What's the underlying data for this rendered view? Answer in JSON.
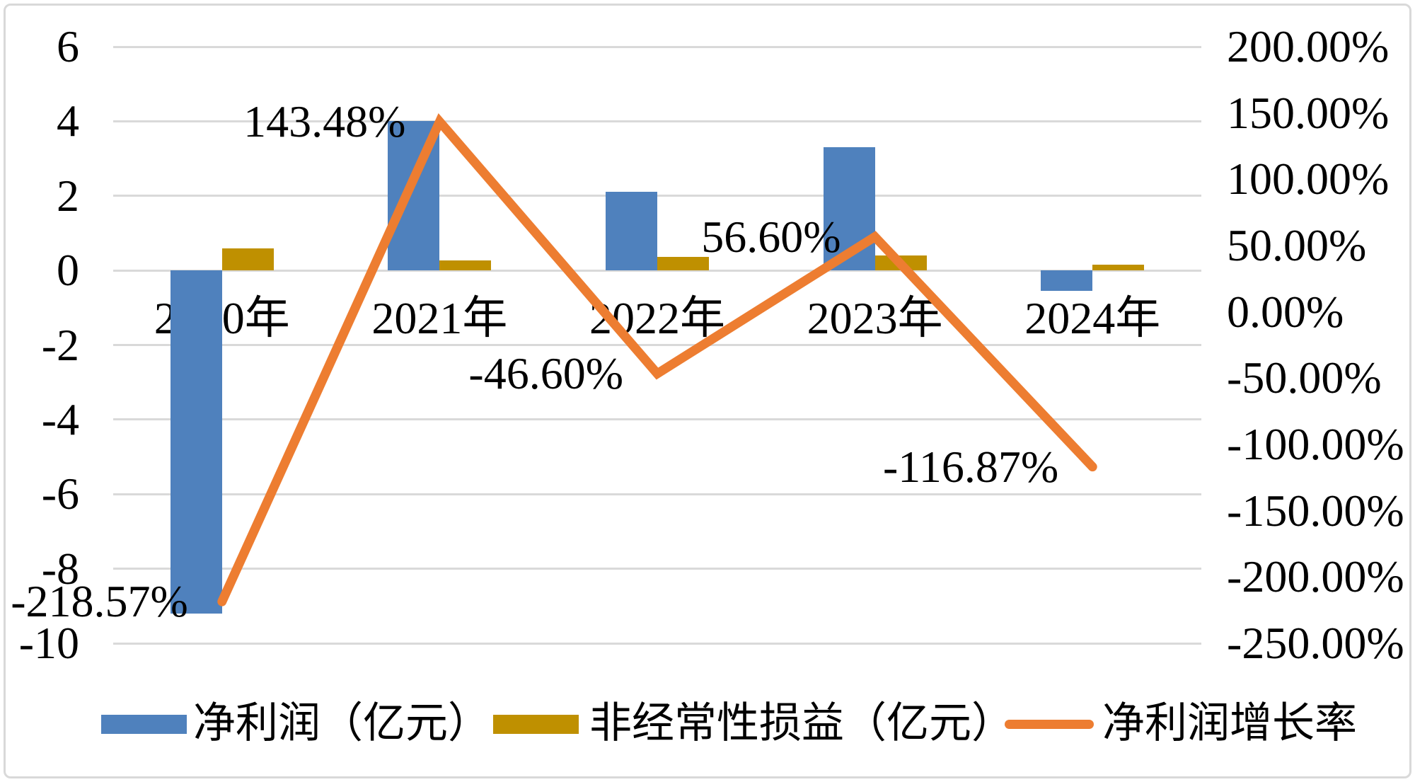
{
  "chart_data": {
    "type": "bar",
    "subtype": "combo-bar-line-dual-axis",
    "categories": [
      "2020年",
      "2021年",
      "2022年",
      "2023年",
      "2024年"
    ],
    "series": [
      {
        "name": "净利润（亿元）",
        "type": "bar",
        "axis": "left",
        "color": "#4F81BD",
        "values": [
          -9.2,
          4.0,
          2.1,
          3.3,
          -0.55
        ]
      },
      {
        "name": "非经常性损益（亿元）",
        "type": "bar",
        "axis": "left",
        "color": "#BF9000",
        "values": [
          0.6,
          0.27,
          0.36,
          0.4,
          0.15
        ]
      },
      {
        "name": "净利润增长率",
        "type": "line",
        "axis": "right",
        "color": "#ED7D31",
        "values": [
          -218.57,
          143.48,
          -46.6,
          56.6,
          -116.87
        ],
        "point_labels": [
          "-218.57%",
          "143.48%",
          "-46.60%",
          "56.60%",
          "-116.87%"
        ]
      }
    ],
    "left_axis": {
      "min": -10,
      "max": 6,
      "step": 2,
      "tick_labels": [
        "6",
        "4",
        "2",
        "0",
        "-2",
        "-4",
        "-6",
        "-8",
        "-10"
      ]
    },
    "right_axis": {
      "min": -250,
      "max": 200,
      "step": 50,
      "tick_labels": [
        "200.00%",
        "150.00%",
        "100.00%",
        "50.00%",
        "0.00%",
        "-50.00%",
        "-100.00%",
        "-150.00%",
        "-200.00%",
        "-250.00%"
      ]
    },
    "grid": true,
    "legend_position": "bottom",
    "colors": {
      "gridline": "#d9d9d9",
      "frame": "#d9d9d9",
      "text": "#000000"
    }
  }
}
